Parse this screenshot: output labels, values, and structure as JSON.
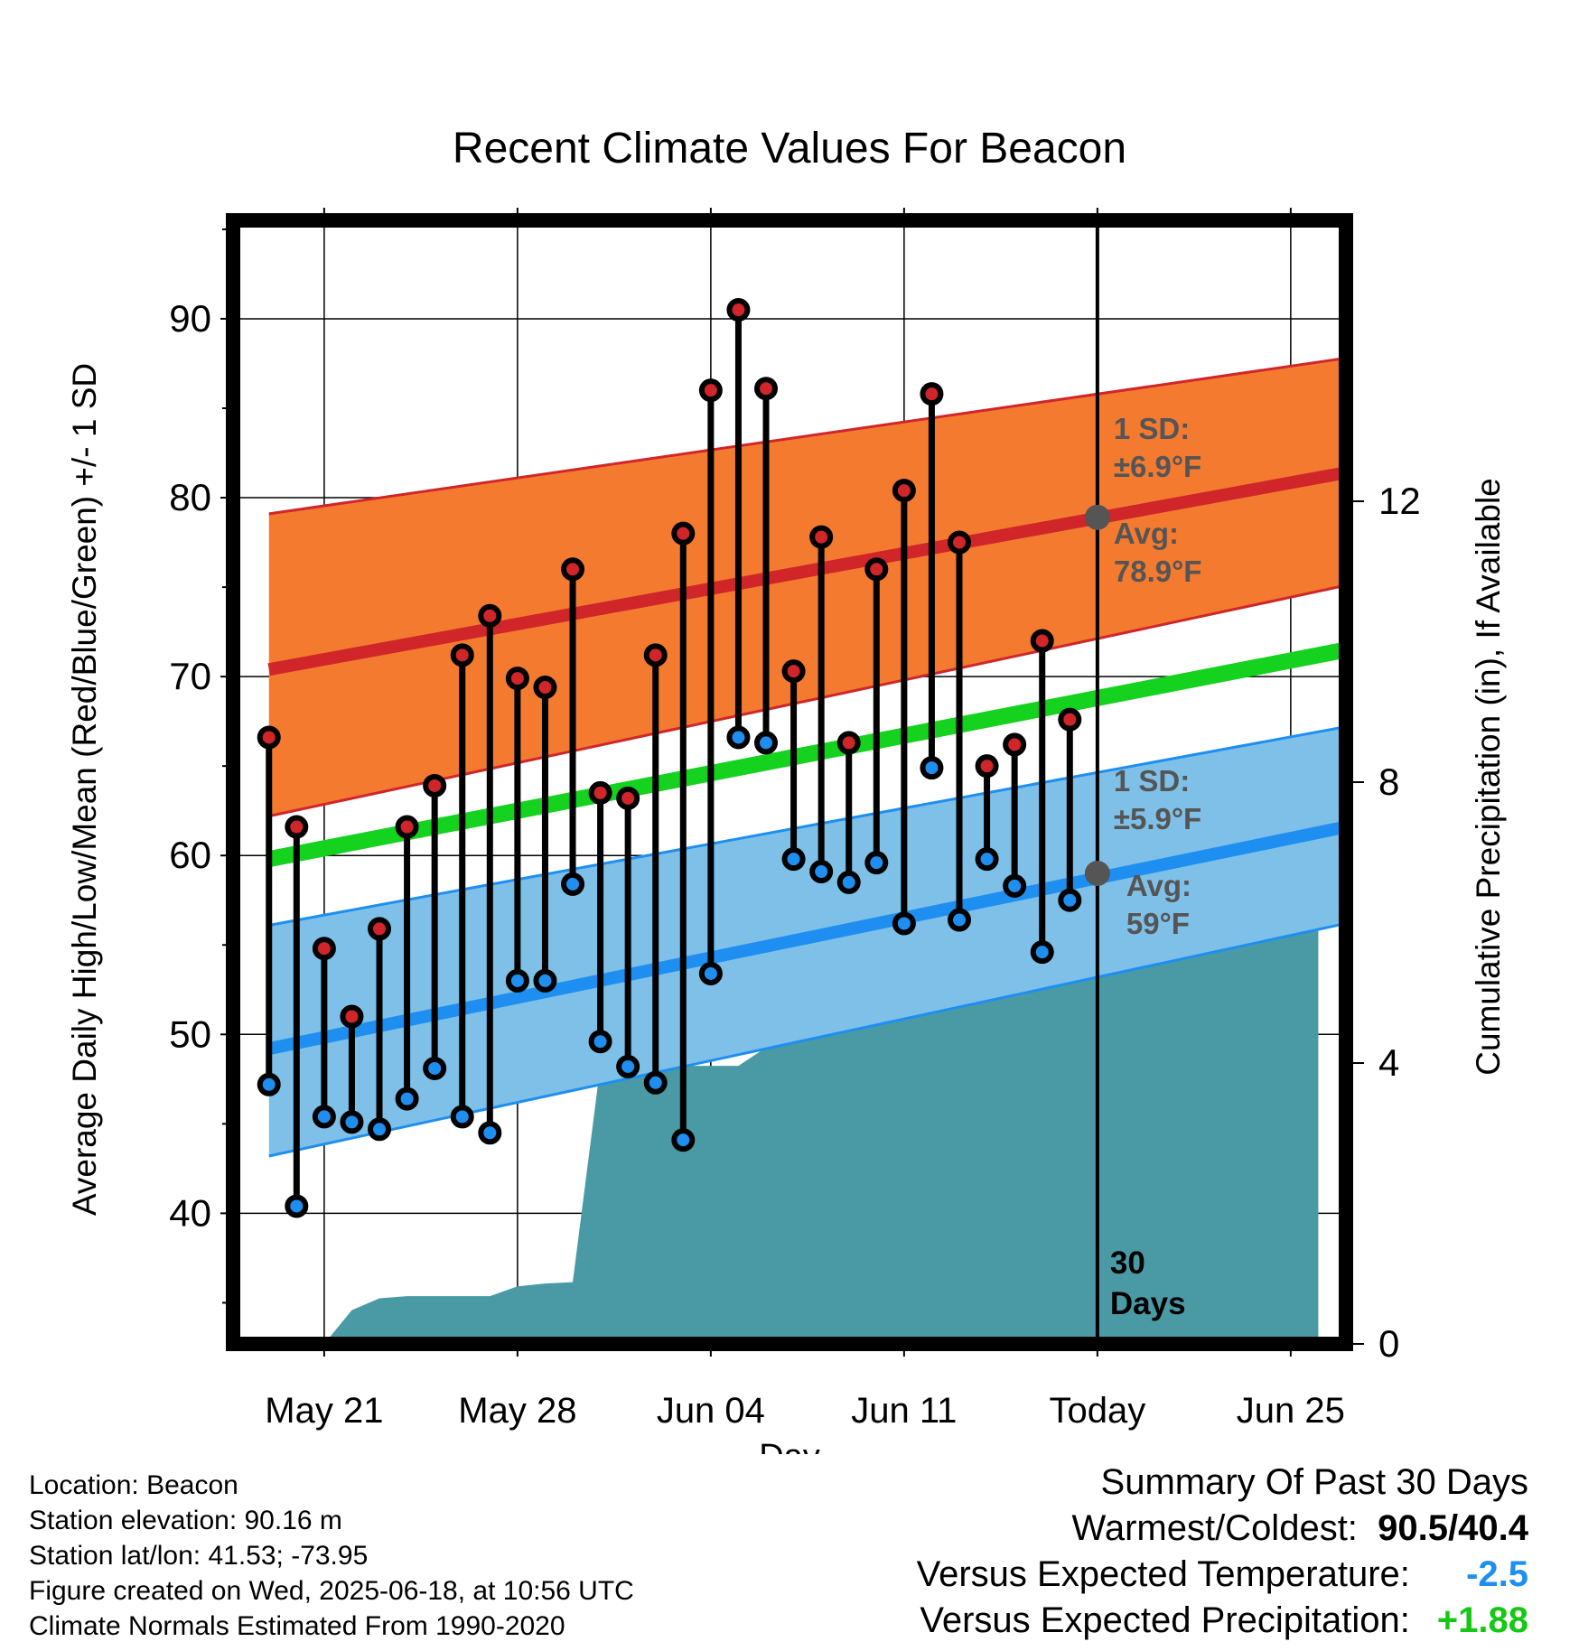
{
  "chart_data": {
    "type": "line",
    "title": "Recent Climate Values For Beacon",
    "xlabel": "Day",
    "ylabel": "Average Daily High/Low/Mean (Red/Blue/Green) +/- 1 SD",
    "y2label": "Cumulative Precipitation (in), If Available",
    "ylim": [
      32.7,
      95.5
    ],
    "y2lim": [
      0,
      16
    ],
    "yticks": [
      40,
      50,
      60,
      70,
      80,
      90
    ],
    "y2ticks": [
      0,
      4,
      8,
      12
    ],
    "xlim": [
      -3.3,
      37.0
    ],
    "xticks": [
      {
        "day": 0,
        "label": "May 21"
      },
      {
        "day": 7,
        "label": "May 28"
      },
      {
        "day": 14,
        "label": "Jun 04"
      },
      {
        "day": 21,
        "label": "Jun 11"
      },
      {
        "day": 28,
        "label": "Today"
      },
      {
        "day": 35,
        "label": "Jun 25"
      }
    ],
    "grid": true,
    "colors": {
      "high_band": "#f47a30",
      "high_mean": "#d0262a",
      "low_band": "#7fc0e8",
      "low_mean": "#1e8ff0",
      "mean": "#14d21e",
      "precip": "#4a9aa5",
      "high_dot": "#d0262a",
      "low_dot": "#1e8ff0",
      "annotation": "#555555",
      "cold": "#1e8ff0",
      "wet": "#14c814"
    },
    "normals": {
      "days": [
        -2,
        37
      ],
      "high_mean": [
        70.4,
        81.4
      ],
      "high_sd_upper": [
        79.1,
        87.8
      ],
      "high_sd_lower": [
        62.2,
        75.1
      ],
      "low_mean": [
        49.2,
        61.6
      ],
      "low_sd_upper": [
        56.1,
        67.2
      ],
      "low_sd_lower": [
        43.2,
        56.2
      ],
      "mean": [
        59.8,
        71.5
      ]
    },
    "series": [
      {
        "name": "High",
        "days": [
          -2,
          -1,
          0,
          1,
          2,
          3,
          4,
          5,
          6,
          7,
          8,
          9,
          10,
          11,
          12,
          13,
          14,
          15,
          16,
          17,
          18,
          19,
          20,
          21,
          22,
          23,
          24,
          25,
          26,
          27
        ],
        "values": [
          66.6,
          61.6,
          54.8,
          51.0,
          55.9,
          61.6,
          63.9,
          71.2,
          73.4,
          69.9,
          69.4,
          76.0,
          63.5,
          63.2,
          71.2,
          78.0,
          86.0,
          90.5,
          86.1,
          70.3,
          77.8,
          66.3,
          76.0,
          80.4,
          85.8,
          77.5,
          65.0,
          66.2,
          72.0,
          67.6
        ]
      },
      {
        "name": "Low",
        "days": [
          -2,
          -1,
          0,
          1,
          2,
          3,
          4,
          5,
          6,
          7,
          8,
          9,
          10,
          11,
          12,
          13,
          14,
          15,
          16,
          17,
          18,
          19,
          20,
          21,
          22,
          23,
          24,
          25,
          26,
          27
        ],
        "values": [
          47.2,
          40.4,
          45.4,
          45.1,
          44.7,
          46.4,
          48.1,
          45.4,
          44.5,
          53.0,
          53.0,
          58.4,
          49.6,
          48.2,
          47.3,
          44.1,
          53.4,
          66.6,
          66.3,
          59.8,
          59.1,
          58.5,
          59.6,
          56.2,
          64.9,
          56.4,
          59.8,
          58.3,
          54.6,
          57.5
        ]
      },
      {
        "name": "Precipitation",
        "days": [
          0,
          1,
          2,
          3,
          4,
          5,
          6,
          7,
          8,
          9,
          10,
          11,
          12,
          13,
          14,
          15,
          16,
          17,
          18,
          19,
          20,
          21,
          22,
          23,
          24,
          25,
          26,
          27,
          28,
          29,
          30,
          31,
          32,
          33,
          34,
          35,
          36
        ],
        "values": [
          0,
          0.48,
          0.65,
          0.68,
          0.68,
          0.68,
          0.68,
          0.82,
          0.86,
          0.88,
          3.96,
          3.96,
          3.96,
          3.96,
          3.96,
          3.96,
          4.22,
          4.78,
          4.85,
          5.08,
          5.2,
          5.2,
          5.2,
          5.22,
          5.25,
          5.25,
          5.74,
          5.96,
          5.96,
          5.96,
          5.96,
          5.96,
          5.96,
          5.96,
          5.96,
          5.96,
          5.96
        ]
      }
    ],
    "today_day": 28,
    "annotations": {
      "high_sd_label": "1 SD:",
      "high_sd_value": "±6.9°F",
      "high_avg_label": "Avg:",
      "high_avg_value": "78.9°F",
      "high_avg": 78.9,
      "low_sd_label": "1 SD:",
      "low_sd_value": "±5.9°F",
      "low_avg_label": "Avg:",
      "low_avg_value": "59°F",
      "low_avg": 59.0,
      "period_number": "30",
      "period_unit": "Days"
    }
  },
  "info": {
    "location": "Location: Beacon",
    "elevation": "Station elevation: 90.16 m",
    "latlon": "Station lat/lon: 41.53; -73.95",
    "created": "Figure created on Wed, 2025-06-18, at 10:56 UTC",
    "normals": "Climate Normals Estimated From 1990-2020"
  },
  "summary": {
    "title": "Summary Of Past 30 Days",
    "warm_cold_label": "Warmest/Coldest:",
    "warmest": "90.5",
    "slash": "/",
    "coldest": "40.4",
    "temp_label": "Versus Expected Temperature:",
    "temp_value": "-2.5",
    "precip_label": "Versus Expected Precipitation:",
    "precip_value": "+1.88"
  }
}
